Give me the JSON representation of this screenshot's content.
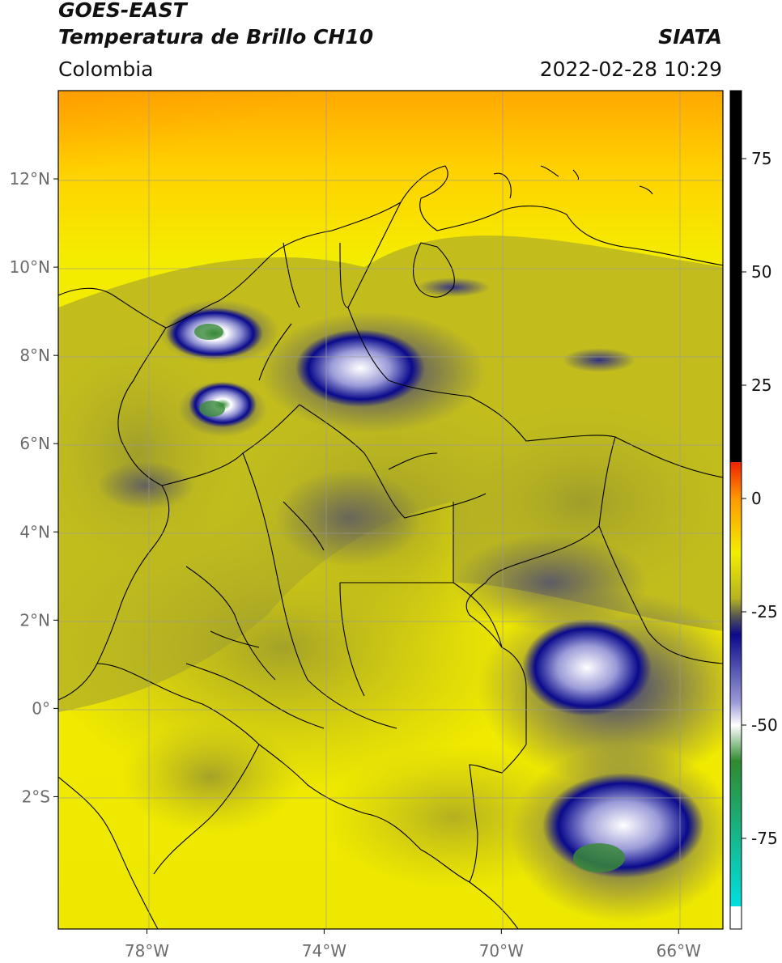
{
  "header": {
    "satellite": "GOES-EAST",
    "product": "Temperatura de Brillo CH10",
    "organization": "SIATA",
    "region": "Colombia",
    "datetime": "2022-02-28 10:29"
  },
  "map": {
    "lon_range": [
      -80,
      -65
    ],
    "lat_range": [
      -5,
      14
    ],
    "lon_ticks": [
      {
        "value": -78,
        "label": "78°W"
      },
      {
        "value": -74,
        "label": "74°W"
      },
      {
        "value": -70,
        "label": "70°W"
      },
      {
        "value": -66,
        "label": "66°W"
      }
    ],
    "lat_ticks": [
      {
        "value": 12,
        "label": "12°N"
      },
      {
        "value": 10,
        "label": "10°N"
      },
      {
        "value": 8,
        "label": "8°N"
      },
      {
        "value": 6,
        "label": "6°N"
      },
      {
        "value": 4,
        "label": "4°N"
      },
      {
        "value": 2,
        "label": "2°N"
      },
      {
        "value": 0,
        "label": "0°"
      },
      {
        "value": -2,
        "label": "2°S"
      }
    ],
    "grid": true
  },
  "colorbar": {
    "range": [
      -95,
      90
    ],
    "ticks": [
      {
        "value": 75,
        "label": "75"
      },
      {
        "value": 50,
        "label": "50"
      },
      {
        "value": 25,
        "label": "25"
      },
      {
        "value": 0,
        "label": "0"
      },
      {
        "value": -25,
        "label": "-25"
      },
      {
        "value": -50,
        "label": "-50"
      },
      {
        "value": -75,
        "label": "-75"
      }
    ],
    "colors": {
      "black": "#000000",
      "red": "#ee2200",
      "orange": "#ff9900",
      "yellow": "#f2ee00",
      "olive": "#b7b321",
      "gray": "#555555",
      "navy": "#0a0a8c",
      "white": "#ffffff",
      "green": "#2f8a2f",
      "cyan": "#00e0e0"
    }
  }
}
